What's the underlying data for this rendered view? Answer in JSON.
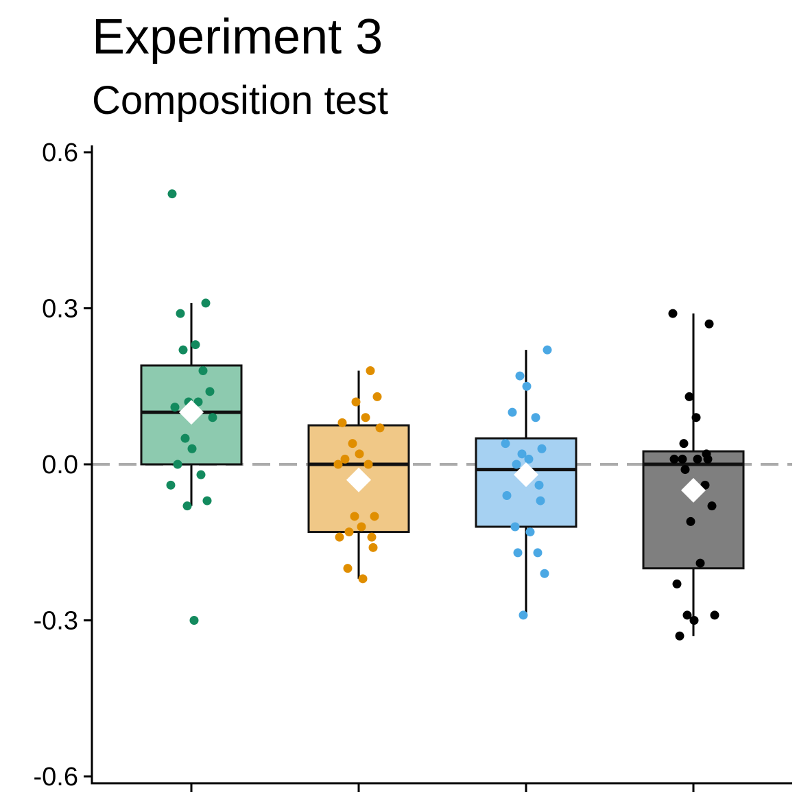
{
  "chart_data": {
    "type": "box",
    "title": "Experiment 3",
    "subtitle": "Composition test",
    "xlabel": "",
    "ylabel": "",
    "ylim": [
      -0.6,
      0.6
    ],
    "yticks": [
      -0.6,
      -0.3,
      0.0,
      0.3,
      0.6
    ],
    "ytick_labels": [
      "-0.6",
      "-0.3",
      "0.0",
      "0.3",
      "0.6"
    ],
    "reference_line": 0.0,
    "grid": false,
    "groups": [
      {
        "fill": "#8DCAAF",
        "point_color": "#138A5E",
        "q1": 0.0,
        "median": 0.1,
        "q3": 0.19,
        "whisker_low": -0.08,
        "whisker_high": 0.31,
        "mean": 0.1,
        "points": [
          0.52,
          0.31,
          0.29,
          0.23,
          0.22,
          0.18,
          0.14,
          0.12,
          0.12,
          0.11,
          0.09,
          0.05,
          0.03,
          0.0,
          -0.02,
          -0.04,
          -0.07,
          -0.08,
          -0.3
        ]
      },
      {
        "fill": "#F0C887",
        "point_color": "#E08E00",
        "q1": -0.13,
        "median": 0.0,
        "q3": 0.075,
        "whisker_low": -0.22,
        "whisker_high": 0.18,
        "mean": -0.03,
        "points": [
          0.18,
          0.13,
          0.12,
          0.09,
          0.08,
          0.07,
          0.04,
          0.02,
          0.01,
          0.0,
          0.0,
          -0.1,
          -0.1,
          -0.12,
          -0.13,
          -0.14,
          -0.14,
          -0.16,
          -0.2,
          -0.22
        ]
      },
      {
        "fill": "#A6D1F2",
        "point_color": "#4BA8E4",
        "q1": -0.12,
        "median": -0.01,
        "q3": 0.05,
        "whisker_low": -0.29,
        "whisker_high": 0.22,
        "mean": -0.02,
        "points": [
          0.22,
          0.17,
          0.15,
          0.1,
          0.09,
          0.04,
          0.03,
          0.02,
          0.01,
          0.0,
          -0.04,
          -0.06,
          -0.07,
          -0.12,
          -0.13,
          -0.17,
          -0.17,
          -0.21,
          -0.29
        ]
      },
      {
        "fill": "#7F7F7F",
        "point_color": "#000000",
        "q1": -0.2,
        "median": 0.0,
        "q3": 0.025,
        "whisker_low": -0.33,
        "whisker_high": 0.29,
        "mean": -0.05,
        "points": [
          0.29,
          0.27,
          0.13,
          0.09,
          0.04,
          0.02,
          0.01,
          0.01,
          0.01,
          0.01,
          -0.01,
          -0.04,
          -0.08,
          -0.11,
          -0.19,
          -0.23,
          -0.29,
          -0.29,
          -0.3,
          -0.33
        ]
      }
    ]
  }
}
